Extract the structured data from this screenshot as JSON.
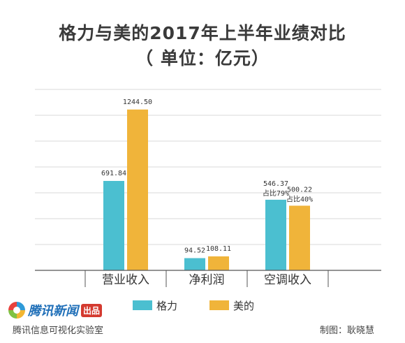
{
  "header": {
    "title": "格力与美的2017年上半年业绩对比",
    "subtitle": "（ 单位：亿元）"
  },
  "chart_data": {
    "type": "bar",
    "categories": [
      "营业收入",
      "净利润",
      "空调收入"
    ],
    "series": [
      {
        "name": "格力",
        "color": "#4bbfd0",
        "values": [
          691.84,
          94.52,
          546.37
        ],
        "labels": [
          "691.84",
          "94.52",
          "546.37"
        ],
        "notes": [
          "",
          "",
          "占比79%"
        ]
      },
      {
        "name": "美的",
        "color": "#f0b43a",
        "values": [
          1244.5,
          108.11,
          500.22
        ],
        "labels": [
          "1244.50",
          "108.11",
          "500.22"
        ],
        "notes": [
          "",
          "",
          "占比40%"
        ]
      }
    ],
    "ylim": [
      0,
      1400
    ],
    "grid": true,
    "legend_position": "bottom"
  },
  "footer": {
    "logo_text": "腾讯新闻",
    "logo_badge": "出品",
    "lab": "腾讯信息可视化实验室",
    "credit": "制图：耿晓慧"
  }
}
